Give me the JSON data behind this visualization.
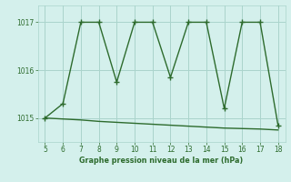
{
  "x_zigzag": [
    5,
    6,
    7,
    8,
    9,
    10,
    11,
    12,
    13,
    14,
    15,
    16,
    17,
    18
  ],
  "y_zigzag": [
    1015.0,
    1015.3,
    1017.0,
    1017.0,
    1015.75,
    1017.0,
    1017.0,
    1015.85,
    1017.0,
    1017.0,
    1015.2,
    1017.0,
    1017.0,
    1014.85
  ],
  "x_flat": [
    5,
    6,
    7,
    8,
    9,
    10,
    11,
    12,
    13,
    14,
    15,
    16,
    17,
    18
  ],
  "y_flat": [
    1015.0,
    1014.98,
    1014.96,
    1014.93,
    1014.91,
    1014.89,
    1014.87,
    1014.85,
    1014.83,
    1014.81,
    1014.79,
    1014.78,
    1014.77,
    1014.75
  ],
  "line_color": "#2d6b2d",
  "bg_color": "#d4f0ec",
  "grid_color": "#aad4cc",
  "xlabel": "Graphe pression niveau de la mer (hPa)",
  "ylim": [
    1014.5,
    1017.35
  ],
  "xlim": [
    4.6,
    18.4
  ],
  "yticks": [
    1015,
    1016,
    1017
  ],
  "xticks": [
    5,
    6,
    7,
    8,
    9,
    10,
    11,
    12,
    13,
    14,
    15,
    16,
    17,
    18
  ],
  "marker": "+",
  "markersize": 4,
  "linewidth": 1.0,
  "tick_labelsize": 5.5,
  "xlabel_fontsize": 5.8
}
